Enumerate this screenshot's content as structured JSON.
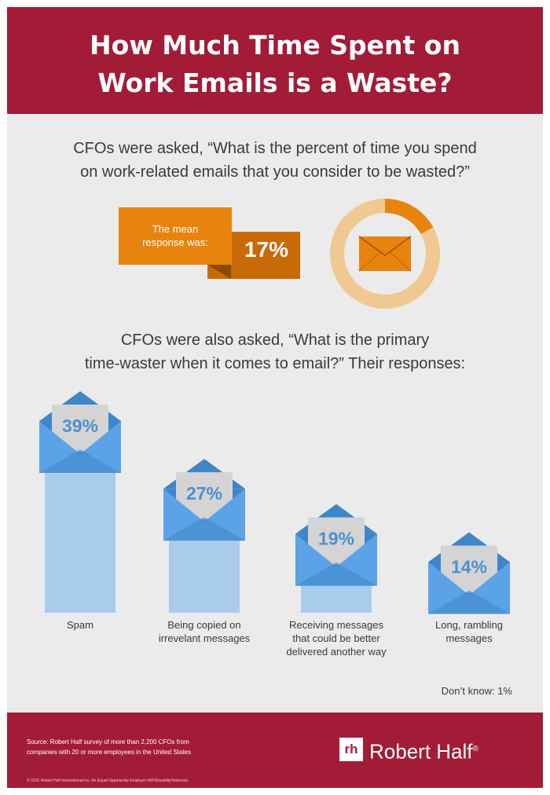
{
  "title_lines": [
    "How Much Time Spent on",
    "Work Emails is a Waste?"
  ],
  "question1_lines": [
    "CFOs were asked, “What is the percent of time you spend",
    "on work-related emails that you consider to be wasted?”"
  ],
  "mean_callout": {
    "label_lines": [
      "The mean",
      "response was:"
    ],
    "value": "17%",
    "fraction": 0.17
  },
  "question2_lines": [
    "CFOs were also asked, “What is the primary",
    "time-waster when it comes to email?” Their responses:"
  ],
  "chart_data": {
    "type": "bar",
    "categories": [
      "Spam",
      "Being copied on irrevelant messages",
      "Receiving messages that could be better delivered another way",
      "Long, rambling messages"
    ],
    "category_label_lines": [
      [
        "Spam"
      ],
      [
        "Being copied on",
        "irrevelant messages"
      ],
      [
        "Receiving messages",
        "that could be better",
        "delivered another way"
      ],
      [
        "Long, rambling",
        "messages"
      ]
    ],
    "values": [
      39,
      27,
      19,
      14
    ],
    "value_labels": [
      "39%",
      "27%",
      "19%",
      "14%"
    ],
    "unit": "%",
    "ylim": [
      0,
      39
    ],
    "grid": false,
    "colors": {
      "envelope": "#5ba3e6",
      "envelope_dark": "#3f86c8",
      "bar": "#a9ccec",
      "card": "#d4d4d4"
    }
  },
  "dont_know": "Don’t know: 1%",
  "footer": {
    "source_lines": [
      "Source: Robert Half survey of more than 2,200 CFOs from",
      "companies with 20 or more employees in the United States"
    ],
    "copyright": "© 2016 Robert Half International Inc. An Equal Opportunity Employer M/F/Disability/Veterans.",
    "brand_mark": "rh",
    "brand_name": "Robert Half",
    "brand_mark_symbol": "®"
  },
  "colors": {
    "header": "#a31c37",
    "orange": "#e8840e",
    "orange_dark": "#c96a08",
    "ring_light": "#f0c891",
    "background": "#ebebeb"
  },
  "icons": [
    "envelope-icon",
    "donut-chart-icon",
    "robert-half-logo"
  ]
}
